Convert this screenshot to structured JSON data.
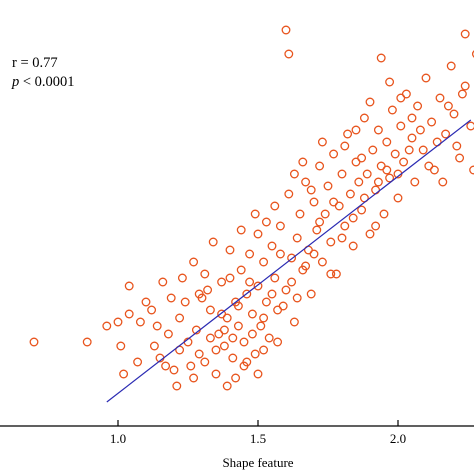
{
  "chart_data": {
    "type": "scatter",
    "title": "",
    "xlabel": "Shape feature",
    "ylabel": "",
    "xlim": [
      0.6,
      2.3
    ],
    "ylim": [
      0.0,
      1.0
    ],
    "x_ticks": [
      "1.0",
      "1.5",
      "2.0"
    ],
    "x_tick_values": [
      1.0,
      1.5,
      2.0
    ],
    "grid": false,
    "legend": "none",
    "annotations": {
      "r_text": "r = 0.77",
      "p_italic": "p",
      "p_rest": " < 0.0001"
    },
    "point_color": "#e8541d",
    "line_color": "#2b2bb3",
    "fit_line": {
      "x": [
        0.96,
        2.26
      ],
      "y": [
        0.03,
        0.735
      ]
    },
    "series": [
      {
        "points": [
          [
            0.7,
            0.18
          ],
          [
            0.89,
            0.18
          ],
          [
            0.96,
            0.22
          ],
          [
            1.0,
            0.23
          ],
          [
            1.01,
            0.17
          ],
          [
            1.04,
            0.32
          ],
          [
            1.04,
            0.25
          ],
          [
            1.08,
            0.23
          ],
          [
            1.12,
            0.26
          ],
          [
            1.14,
            0.22
          ],
          [
            1.15,
            0.14
          ],
          [
            1.18,
            0.2
          ],
          [
            1.2,
            0.11
          ],
          [
            1.22,
            0.16
          ],
          [
            1.22,
            0.24
          ],
          [
            1.24,
            0.28
          ],
          [
            1.25,
            0.18
          ],
          [
            1.26,
            0.12
          ],
          [
            1.28,
            0.21
          ],
          [
            1.29,
            0.15
          ],
          [
            1.3,
            0.29
          ],
          [
            1.31,
            0.35
          ],
          [
            1.33,
            0.19
          ],
          [
            1.33,
            0.26
          ],
          [
            1.35,
            0.1
          ],
          [
            1.36,
            0.2
          ],
          [
            1.37,
            0.33
          ],
          [
            1.38,
            0.17
          ],
          [
            1.39,
            0.24
          ],
          [
            1.4,
            0.41
          ],
          [
            1.41,
            0.14
          ],
          [
            1.42,
            0.28
          ],
          [
            1.43,
            0.22
          ],
          [
            1.44,
            0.36
          ],
          [
            1.45,
            0.18
          ],
          [
            1.46,
            0.3
          ],
          [
            1.47,
            0.4
          ],
          [
            1.48,
            0.25
          ],
          [
            1.49,
            0.15
          ],
          [
            1.5,
            0.32
          ],
          [
            1.5,
            0.45
          ],
          [
            1.51,
            0.22
          ],
          [
            1.52,
            0.38
          ],
          [
            1.53,
            0.28
          ],
          [
            1.54,
            0.19
          ],
          [
            1.55,
            0.42
          ],
          [
            1.56,
            0.34
          ],
          [
            1.57,
            0.26
          ],
          [
            1.58,
            0.47
          ],
          [
            1.6,
            0.31
          ],
          [
            1.61,
            0.55
          ],
          [
            1.62,
            0.39
          ],
          [
            1.63,
            0.23
          ],
          [
            1.64,
            0.44
          ],
          [
            1.65,
            0.5
          ],
          [
            1.66,
            0.36
          ],
          [
            1.67,
            0.58
          ],
          [
            1.68,
            0.41
          ],
          [
            1.69,
            0.3
          ],
          [
            1.7,
            0.53
          ],
          [
            1.71,
            0.46
          ],
          [
            1.72,
            0.62
          ],
          [
            1.73,
            0.38
          ],
          [
            1.74,
            0.5
          ],
          [
            1.75,
            0.57
          ],
          [
            1.76,
            0.43
          ],
          [
            1.77,
            0.65
          ],
          [
            1.78,
            0.35
          ],
          [
            1.79,
            0.52
          ],
          [
            1.8,
            0.6
          ],
          [
            1.81,
            0.47
          ],
          [
            1.82,
            0.7
          ],
          [
            1.83,
            0.55
          ],
          [
            1.84,
            0.42
          ],
          [
            1.85,
            0.63
          ],
          [
            1.86,
            0.58
          ],
          [
            1.87,
            0.51
          ],
          [
            1.88,
            0.74
          ],
          [
            1.89,
            0.6
          ],
          [
            1.9,
            0.45
          ],
          [
            1.91,
            0.66
          ],
          [
            1.92,
            0.56
          ],
          [
            1.93,
            0.71
          ],
          [
            1.94,
            0.62
          ],
          [
            1.95,
            0.5
          ],
          [
            1.96,
            0.68
          ],
          [
            1.97,
            0.59
          ],
          [
            1.98,
            0.76
          ],
          [
            1.99,
            0.65
          ],
          [
            2.0,
            0.54
          ],
          [
            2.01,
            0.72
          ],
          [
            2.02,
            0.63
          ],
          [
            2.03,
            0.8
          ],
          [
            2.05,
            0.69
          ],
          [
            2.06,
            0.58
          ],
          [
            2.07,
            0.77
          ],
          [
            2.09,
            0.66
          ],
          [
            2.1,
            0.84
          ],
          [
            2.12,
            0.73
          ],
          [
            2.13,
            0.61
          ],
          [
            2.15,
            0.79
          ],
          [
            2.17,
            0.7
          ],
          [
            2.19,
            0.87
          ],
          [
            2.2,
            0.75
          ],
          [
            2.22,
            0.64
          ],
          [
            2.24,
            0.82
          ],
          [
            2.26,
            0.72
          ],
          [
            2.28,
            0.9
          ],
          [
            1.35,
            0.16
          ],
          [
            1.38,
            0.21
          ],
          [
            1.41,
            0.19
          ],
          [
            1.43,
            0.27
          ],
          [
            1.46,
            0.13
          ],
          [
            1.48,
            0.2
          ],
          [
            1.52,
            0.24
          ],
          [
            1.55,
            0.3
          ],
          [
            1.57,
            0.18
          ],
          [
            1.59,
            0.27
          ],
          [
            1.62,
            0.33
          ],
          [
            1.64,
            0.29
          ],
          [
            1.67,
            0.37
          ],
          [
            1.7,
            0.4
          ],
          [
            1.72,
            0.48
          ],
          [
            1.76,
            0.35
          ],
          [
            1.8,
            0.44
          ],
          [
            1.84,
            0.49
          ],
          [
            1.88,
            0.54
          ],
          [
            1.92,
            0.47
          ],
          [
            1.96,
            0.61
          ],
          [
            2.0,
            0.6
          ],
          [
            2.04,
            0.66
          ],
          [
            2.08,
            0.71
          ],
          [
            2.14,
            0.68
          ],
          [
            2.18,
            0.77
          ],
          [
            2.23,
            0.8
          ],
          [
            1.6,
            0.96
          ],
          [
            1.61,
            0.9
          ],
          [
            1.94,
            0.89
          ],
          [
            2.24,
            0.95
          ],
          [
            1.45,
            0.12
          ],
          [
            1.29,
            0.3
          ],
          [
            1.34,
            0.43
          ],
          [
            1.23,
            0.34
          ],
          [
            1.19,
            0.29
          ],
          [
            1.16,
            0.33
          ],
          [
            1.1,
            0.28
          ],
          [
            1.27,
            0.38
          ],
          [
            1.32,
            0.31
          ],
          [
            1.37,
            0.25
          ],
          [
            1.4,
            0.34
          ],
          [
            1.44,
            0.46
          ],
          [
            1.47,
            0.33
          ],
          [
            1.49,
            0.5
          ],
          [
            1.53,
            0.48
          ],
          [
            1.56,
            0.52
          ],
          [
            1.58,
            0.4
          ],
          [
            1.63,
            0.6
          ],
          [
            1.66,
            0.63
          ],
          [
            1.69,
            0.56
          ],
          [
            1.73,
            0.68
          ],
          [
            1.77,
            0.53
          ],
          [
            1.81,
            0.67
          ],
          [
            1.85,
            0.71
          ],
          [
            1.87,
            0.64
          ],
          [
            1.9,
            0.78
          ],
          [
            1.93,
            0.58
          ],
          [
            1.97,
            0.83
          ],
          [
            2.01,
            0.79
          ],
          [
            2.05,
            0.74
          ],
          [
            2.11,
            0.62
          ],
          [
            2.16,
            0.58
          ],
          [
            2.21,
            0.67
          ],
          [
            2.27,
            0.61
          ],
          [
            1.52,
            0.16
          ],
          [
            1.5,
            0.1
          ],
          [
            1.42,
            0.09
          ],
          [
            1.39,
            0.07
          ],
          [
            1.31,
            0.13
          ],
          [
            1.27,
            0.09
          ],
          [
            1.21,
            0.07
          ],
          [
            1.17,
            0.12
          ],
          [
            1.13,
            0.17
          ],
          [
            1.07,
            0.13
          ],
          [
            1.02,
            0.1
          ]
        ]
      }
    ]
  }
}
